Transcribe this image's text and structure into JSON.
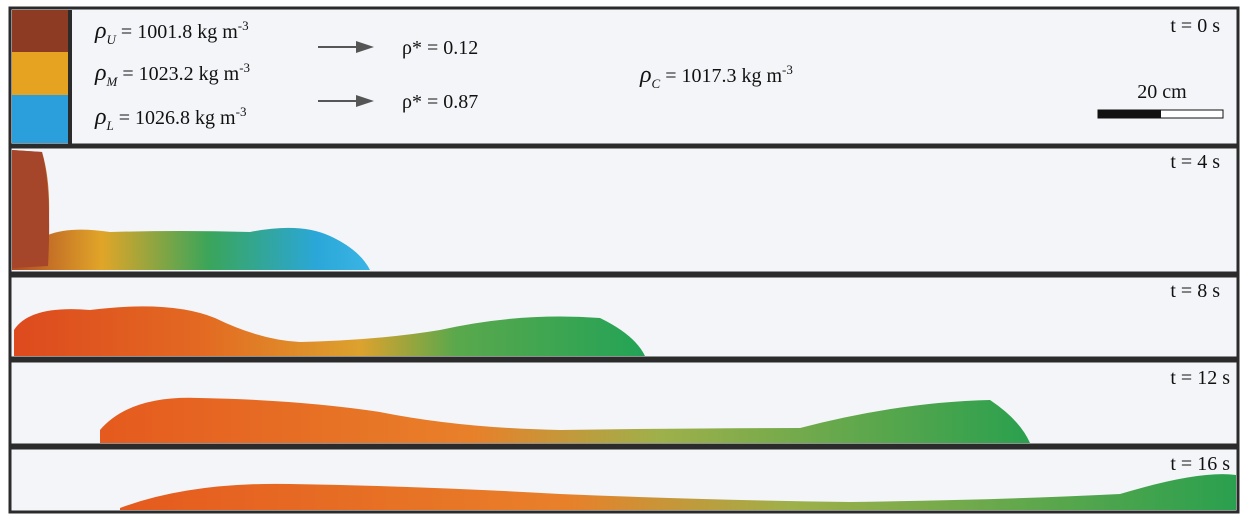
{
  "header": {
    "layers": [
      {
        "symbol": "ρ",
        "subscript": "U",
        "equation": " = 1001.8 kg m",
        "exponent": "-3"
      },
      {
        "symbol": "ρ",
        "subscript": "M",
        "equation": " = 1023.2 kg m",
        "exponent": "-3"
      },
      {
        "symbol": "ρ",
        "subscript": "L",
        "equation": " = 1026.8 kg m",
        "exponent": "-3"
      }
    ],
    "ratios": [
      "ρ* = 0.12",
      "ρ* = 0.87"
    ],
    "ambient": {
      "symbol": "ρ",
      "subscript": "C",
      "equation": " = 1017.3 kg m",
      "exponent": "-3"
    },
    "scale_bar": "20 cm"
  },
  "panels": [
    {
      "time": "t = 0 s"
    },
    {
      "time": "t = 4 s"
    },
    {
      "time": "t = 8 s"
    },
    {
      "time": "t = 12 s"
    },
    {
      "time": "t = 16 s"
    }
  ]
}
